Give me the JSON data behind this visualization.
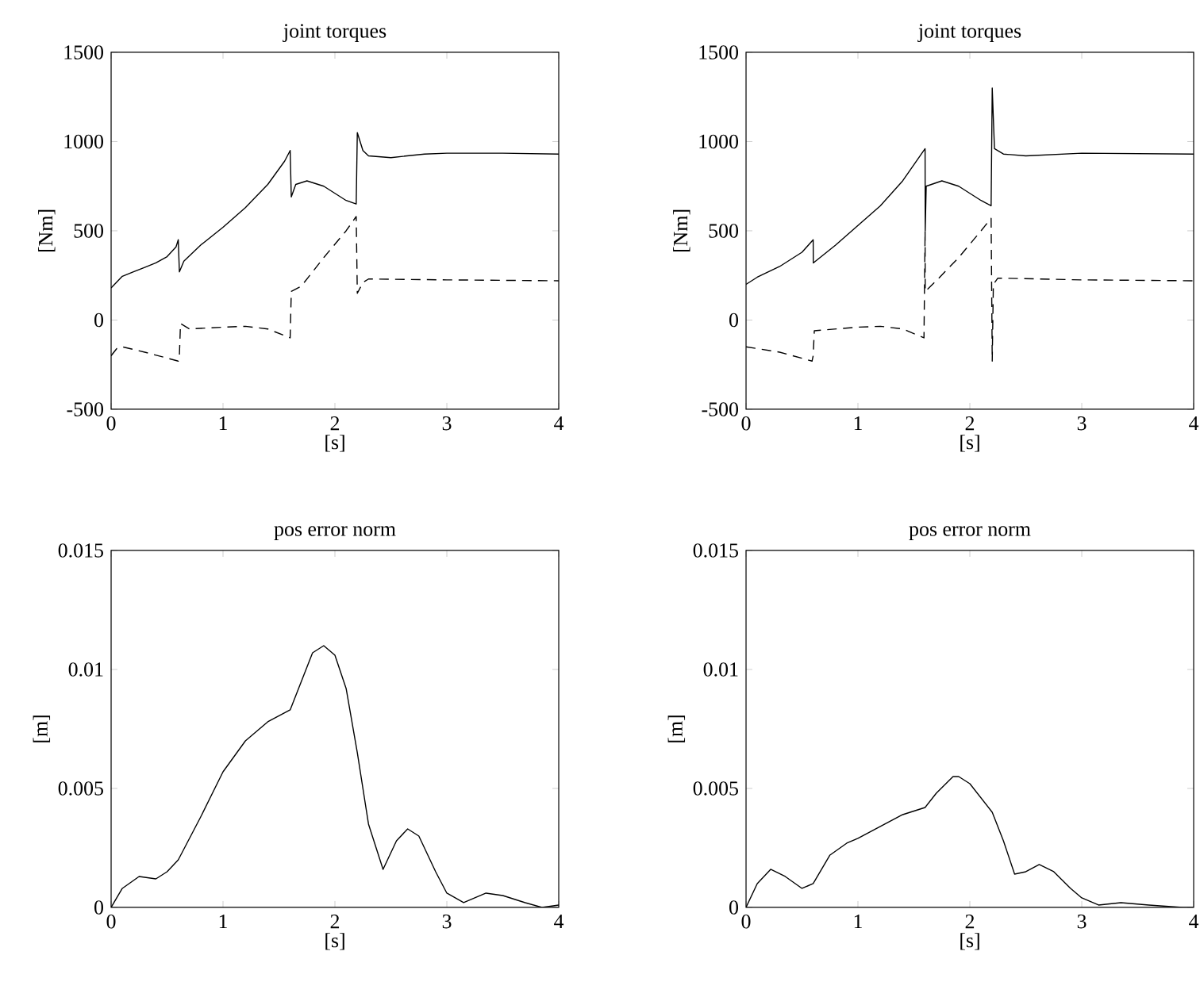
{
  "chart_data": [
    {
      "type": "line",
      "title": "joint torques",
      "xlabel": "[s]",
      "ylabel": "[Nm]",
      "xlim": [
        0,
        4
      ],
      "ylim": [
        -500,
        1500
      ],
      "xticks": [
        0,
        1,
        2,
        3,
        4
      ],
      "yticks": [
        -500,
        0,
        500,
        1000,
        1500
      ],
      "series": [
        {
          "color": "#000000",
          "line_style": "solid",
          "x": [
            0,
            0.1,
            0.2,
            0.3,
            0.4,
            0.5,
            0.58,
            0.6,
            0.61,
            0.65,
            0.8,
            1.0,
            1.2,
            1.4,
            1.55,
            1.6,
            1.61,
            1.65,
            1.75,
            1.9,
            2.0,
            2.1,
            2.19,
            2.2,
            2.25,
            2.3,
            2.5,
            2.8,
            3.0,
            3.5,
            4.0
          ],
          "values": [
            180,
            245,
            270,
            295,
            320,
            355,
            410,
            450,
            270,
            330,
            420,
            520,
            630,
            760,
            890,
            950,
            690,
            760,
            780,
            750,
            710,
            670,
            650,
            1050,
            950,
            920,
            910,
            930,
            935,
            935,
            930
          ]
        },
        {
          "color": "#000000",
          "line_style": "dashed",
          "x": [
            0,
            0.05,
            0.1,
            0.3,
            0.6,
            0.61,
            0.62,
            0.7,
            1.0,
            1.2,
            1.4,
            1.6,
            1.61,
            1.7,
            1.9,
            2.1,
            2.19,
            2.2,
            2.25,
            2.3,
            3.0,
            4.0
          ],
          "values": [
            -200,
            -160,
            -150,
            -180,
            -230,
            -200,
            -20,
            -50,
            -40,
            -35,
            -50,
            -100,
            160,
            190,
            350,
            500,
            580,
            150,
            210,
            230,
            225,
            220
          ]
        }
      ]
    },
    {
      "type": "line",
      "title": "joint torques",
      "xlabel": "[s]",
      "ylabel": "[Nm]",
      "xlim": [
        0,
        4
      ],
      "ylim": [
        -500,
        1500
      ],
      "xticks": [
        0,
        1,
        2,
        3,
        4
      ],
      "yticks": [
        -500,
        0,
        500,
        1000,
        1500
      ],
      "series": [
        {
          "color": "#000000",
          "line_style": "solid",
          "x": [
            0,
            0.1,
            0.3,
            0.5,
            0.6,
            0.601,
            0.8,
            1.0,
            1.2,
            1.4,
            1.6,
            1.601,
            1.61,
            1.75,
            1.9,
            2.1,
            2.19,
            2.2,
            2.22,
            2.3,
            2.5,
            3.0,
            4.0
          ],
          "values": [
            200,
            240,
            300,
            380,
            450,
            320,
            420,
            530,
            640,
            780,
            960,
            500,
            750,
            780,
            750,
            670,
            640,
            1300,
            960,
            930,
            920,
            935,
            930
          ]
        },
        {
          "color": "#000000",
          "line_style": "dashed",
          "x": [
            0,
            0.3,
            0.59,
            0.6,
            0.61,
            1.0,
            1.2,
            1.4,
            1.59,
            1.6,
            1.601,
            1.7,
            1.9,
            2.1,
            2.19,
            2.2,
            2.21,
            2.25,
            3.0,
            4.0
          ],
          "values": [
            -150,
            -180,
            -230,
            -200,
            -60,
            -40,
            -35,
            -50,
            -100,
            500,
            160,
            220,
            350,
            500,
            570,
            -230,
            200,
            235,
            225,
            220
          ]
        }
      ]
    },
    {
      "type": "line",
      "title": "pos error norm",
      "xlabel": "[s]",
      "ylabel": "[m]",
      "xlim": [
        0,
        4
      ],
      "ylim": [
        0,
        0.015
      ],
      "xticks": [
        0,
        1,
        2,
        3,
        4
      ],
      "yticks": [
        0,
        0.005,
        0.01,
        0.015
      ],
      "series": [
        {
          "color": "#000000",
          "line_style": "solid",
          "x": [
            0,
            0.1,
            0.25,
            0.4,
            0.5,
            0.6,
            0.8,
            1.0,
            1.2,
            1.4,
            1.6,
            1.7,
            1.8,
            1.9,
            2.0,
            2.1,
            2.2,
            2.3,
            2.43,
            2.55,
            2.65,
            2.75,
            2.9,
            3.0,
            3.15,
            3.35,
            3.5,
            3.7,
            3.85,
            4.0
          ],
          "values": [
            0,
            0.0008,
            0.0013,
            0.0012,
            0.0015,
            0.002,
            0.0038,
            0.0057,
            0.007,
            0.0078,
            0.0083,
            0.0095,
            0.0107,
            0.011,
            0.0106,
            0.0092,
            0.0065,
            0.0035,
            0.0016,
            0.0028,
            0.0033,
            0.003,
            0.0015,
            0.0006,
            0.0002,
            0.0006,
            0.0005,
            0.0002,
            0,
            0.0001
          ]
        }
      ]
    },
    {
      "type": "line",
      "title": "pos error norm",
      "xlabel": "[s]",
      "ylabel": "[m]",
      "xlim": [
        0,
        4
      ],
      "ylim": [
        0,
        0.015
      ],
      "xticks": [
        0,
        1,
        2,
        3,
        4
      ],
      "yticks": [
        0,
        0.005,
        0.01,
        0.015
      ],
      "series": [
        {
          "color": "#000000",
          "line_style": "solid",
          "x": [
            0,
            0.1,
            0.22,
            0.35,
            0.5,
            0.6,
            0.75,
            0.9,
            1.0,
            1.2,
            1.4,
            1.6,
            1.7,
            1.85,
            1.9,
            2.0,
            2.2,
            2.3,
            2.4,
            2.5,
            2.62,
            2.75,
            2.9,
            3.0,
            3.15,
            3.35,
            3.6,
            3.9,
            4.0
          ],
          "values": [
            0,
            0.001,
            0.0016,
            0.0013,
            0.0008,
            0.001,
            0.0022,
            0.0027,
            0.0029,
            0.0034,
            0.0039,
            0.0042,
            0.0048,
            0.0055,
            0.0055,
            0.0052,
            0.004,
            0.0028,
            0.0014,
            0.0015,
            0.0018,
            0.0015,
            0.0008,
            0.0004,
            0.0001,
            0.0002,
            0.0001,
            0,
            0
          ]
        }
      ]
    }
  ]
}
